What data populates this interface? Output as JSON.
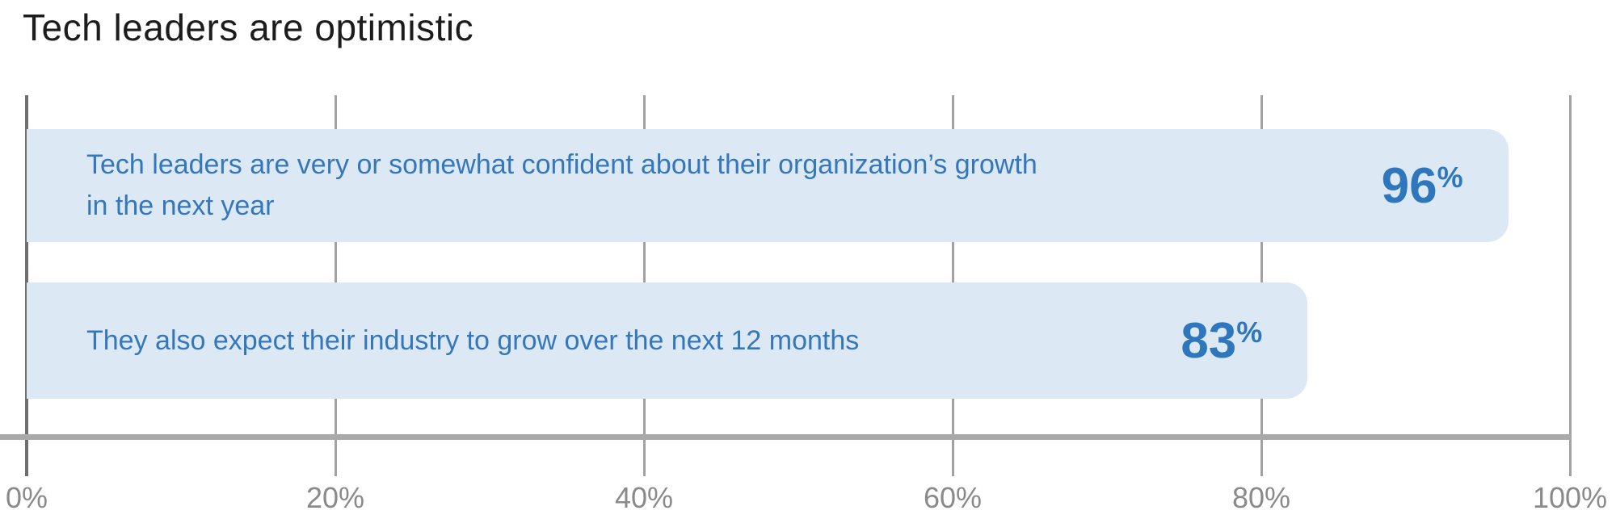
{
  "title": "Tech leaders are optimistic",
  "chart_data": {
    "type": "bar",
    "orientation": "horizontal",
    "title": "Tech leaders are optimistic",
    "unit": "%",
    "xlim": [
      0,
      100
    ],
    "grid": true,
    "legend": false,
    "x_ticks": [
      {
        "label": "0%",
        "value": 0
      },
      {
        "label": "20%",
        "value": 20
      },
      {
        "label": "40%",
        "value": 40
      },
      {
        "label": "60%",
        "value": 60
      },
      {
        "label": "80%",
        "value": 80
      },
      {
        "label": "100%",
        "value": 100
      }
    ],
    "bars": [
      {
        "label": "Tech leaders are very or somewhat confident about their organization’s growth in the next year",
        "value": 96,
        "display_value": "96",
        "unit_suffix": "%"
      },
      {
        "label": "They also expect their industry to grow over the next 12 months",
        "value": 83,
        "display_value": "83",
        "unit_suffix": "%"
      }
    ],
    "colors": {
      "bar_fill": "#dce9f5",
      "bar_text": "#3477ba",
      "value_text": "#2f77bd",
      "gridline": "#a2a2a2",
      "zero_line": "#6f6f6f",
      "axis_line": "#a9a9a9",
      "tick_label": "#8a8a8a",
      "title_text": "#1c1c1c"
    }
  }
}
